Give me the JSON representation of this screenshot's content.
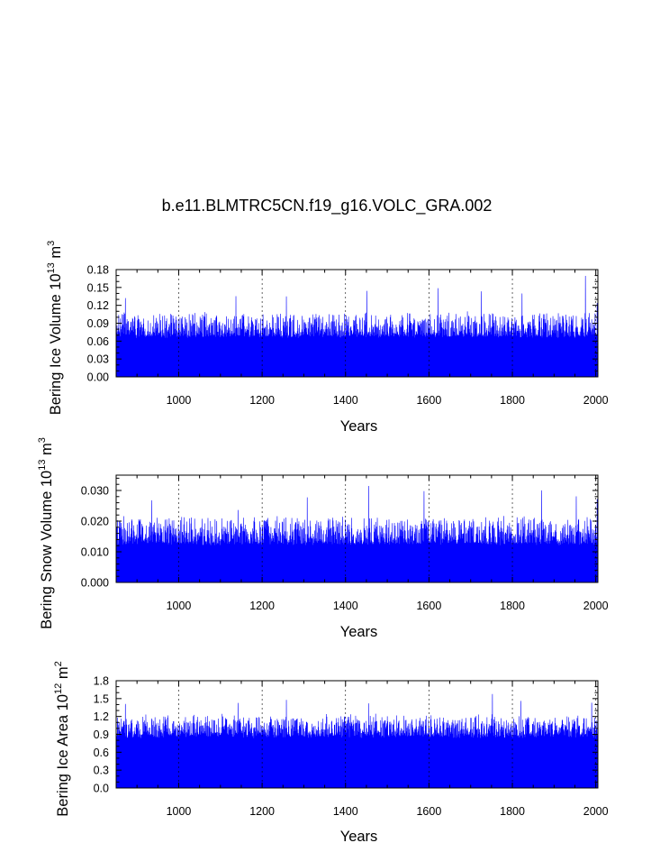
{
  "title": "b.e11.BLMTRC5CN.f19_g16.VOLC_GRA.002",
  "colors": {
    "series": "#0000ff",
    "frame": "#000000",
    "gridline": "#000000"
  },
  "chart_data": [
    {
      "type": "line",
      "ylabel": {
        "text": "Bering Ice Volume 10",
        "exp": "13",
        "unit": " m",
        "unit_exp": "3"
      },
      "xlabel": "Years",
      "xlim": [
        850,
        2005
      ],
      "ylim": [
        0.0,
        0.18
      ],
      "xticks": [
        "1000",
        "1200",
        "1400",
        "1600",
        "1800",
        "2000"
      ],
      "yticks": [
        "0.00",
        "0.03",
        "0.06",
        "0.09",
        "0.12",
        "0.15",
        "0.18"
      ],
      "grid": "vertical dashed at major x ticks",
      "series": [
        {
          "values_summary": {
            "baseline_min": 0.0,
            "typical_max": [
              0.07,
              0.11
            ],
            "peaks": [
              [
                872,
                0.138
              ],
              [
                1003,
                0.1
              ],
              [
                1137,
                0.136
              ],
              [
                1258,
                0.136
              ],
              [
                1451,
                0.145
              ],
              [
                1622,
                0.152
              ],
              [
                1725,
                0.148
              ],
              [
                1823,
                0.148
              ],
              [
                1975,
                0.173
              ],
              [
                2003,
                0.125
              ]
            ]
          }
        }
      ]
    },
    {
      "type": "line",
      "ylabel": {
        "text": "Bering Snow Volume 10",
        "exp": "13",
        "unit": " m",
        "unit_exp": "3"
      },
      "xlabel": "Years",
      "xlim": [
        850,
        2005
      ],
      "ylim": [
        0.0,
        0.035
      ],
      "xticks": [
        "1000",
        "1200",
        "1400",
        "1600",
        "1800",
        "2000"
      ],
      "yticks": [
        "0.000",
        "0.010",
        "0.020",
        "0.030"
      ],
      "grid": "vertical dashed at major x ticks",
      "series": [
        {
          "values_summary": {
            "baseline_min": 0.0,
            "typical_max": [
              0.013,
              0.022
            ],
            "peaks": [
              [
                935,
                0.028
              ],
              [
                1142,
                0.025
              ],
              [
                1308,
                0.029
              ],
              [
                1455,
                0.033
              ],
              [
                1588,
                0.03
              ],
              [
                1870,
                0.032
              ],
              [
                1953,
                0.029
              ],
              [
                2003,
                0.028
              ]
            ]
          }
        }
      ]
    },
    {
      "type": "line",
      "ylabel": {
        "text": "Bering Ice Area 10",
        "exp": "12",
        "unit": " m",
        "unit_exp": "2"
      },
      "xlabel": "Years",
      "xlim": [
        850,
        2005
      ],
      "ylim": [
        0.0,
        1.8
      ],
      "xticks": [
        "1000",
        "1200",
        "1400",
        "1600",
        "1800",
        "2000"
      ],
      "yticks": [
        "0.0",
        "0.3",
        "0.6",
        "0.9",
        "1.2",
        "1.5",
        "1.8"
      ],
      "grid": "vertical dashed at major x ticks",
      "series": [
        {
          "values_summary": {
            "baseline_min": 0.0,
            "typical_max": [
              0.9,
              1.25
            ],
            "peaks": [
              [
                872,
                1.48
              ],
              [
                1142,
                1.45
              ],
              [
                1258,
                1.5
              ],
              [
                1455,
                1.49
              ],
              [
                1752,
                1.6
              ],
              [
                1820,
                1.52
              ],
              [
                1990,
                1.52
              ]
            ]
          }
        }
      ]
    }
  ]
}
